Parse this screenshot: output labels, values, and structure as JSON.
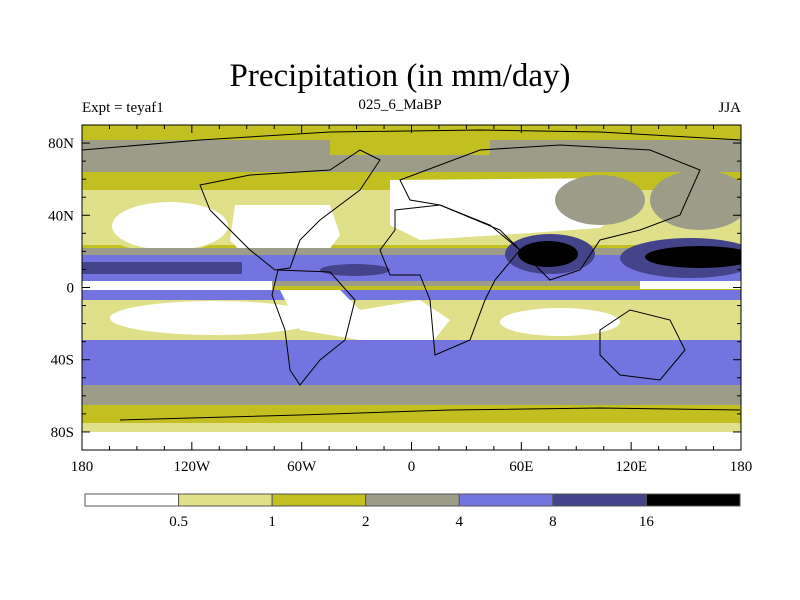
{
  "title": "Precipitation (in mm/day)",
  "left_label": "Expt = teyaf1",
  "center_label": "025_6_MaBP",
  "right_label": "JJA",
  "lat_ticks": [
    "80N",
    "40N",
    "0",
    "40S",
    "80S"
  ],
  "lat_values": [
    80,
    40,
    0,
    -40,
    -80
  ],
  "lon_ticks": [
    "180",
    "120W",
    "60W",
    "0",
    "60E",
    "120E",
    "180"
  ],
  "lon_values": [
    -180,
    -120,
    -60,
    0,
    60,
    120,
    180
  ],
  "colorbar": {
    "levels": [
      "0.5",
      "1",
      "2",
      "4",
      "8",
      "16"
    ],
    "colors": [
      "#ffffff",
      "#e0e08a",
      "#c2c020",
      "#9c9c88",
      "#7474e0",
      "#44448a",
      "#000000"
    ]
  }
}
